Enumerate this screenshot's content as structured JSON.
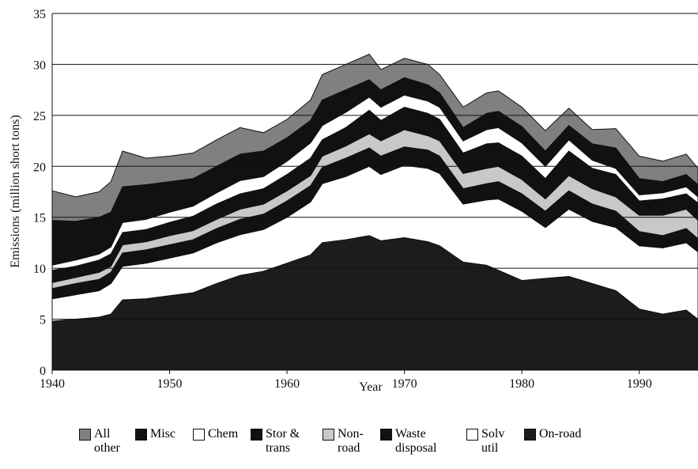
{
  "chart_data": {
    "type": "stacked-area",
    "x_label": "Year",
    "y_label": "Emissions (million short tons)",
    "x": [
      1940,
      1942,
      1944,
      1945,
      1946,
      1948,
      1950,
      1952,
      1954,
      1956,
      1958,
      1960,
      1962,
      1963,
      1965,
      1967,
      1968,
      1970,
      1972,
      1973,
      1975,
      1977,
      1978,
      1980,
      1982,
      1984,
      1986,
      1988,
      1990,
      1992,
      1994,
      1995
    ],
    "xlim": [
      1940,
      1995
    ],
    "xticks": [
      1940,
      1950,
      1960,
      1970,
      1980,
      1990
    ],
    "ylim": [
      0,
      35
    ],
    "yticks": [
      0,
      5,
      10,
      15,
      20,
      25,
      30,
      35
    ],
    "grid": true,
    "series": [
      {
        "name": "All other",
        "color": "#808080",
        "values": [
          2.9,
          2.4,
          2.5,
          3.0,
          3.5,
          2.6,
          2.5,
          2.5,
          2.6,
          2.6,
          1.8,
          1.8,
          2.0,
          2.5,
          2.5,
          2.5,
          2.0,
          1.9,
          2.0,
          1.8,
          2.0,
          2.0,
          2.0,
          1.9,
          2.0,
          1.7,
          1.4,
          1.9,
          2.2,
          2.0,
          2.0,
          1.6
        ]
      },
      {
        "name": "Misc",
        "color": "#111111",
        "values": [
          4.4,
          3.8,
          3.6,
          3.4,
          3.5,
          3.4,
          3.0,
          2.7,
          2.6,
          2.6,
          2.5,
          2.3,
          2.2,
          2.5,
          2.2,
          1.7,
          1.7,
          1.7,
          1.6,
          1.4,
          1.3,
          1.6,
          1.6,
          1.6,
          1.5,
          1.4,
          1.6,
          2.0,
          1.6,
          1.1,
          1.2,
          1.2
        ]
      },
      {
        "name": "Chem",
        "color": "#ffffff",
        "values": [
          0.5,
          0.6,
          0.6,
          0.7,
          1.0,
          1.0,
          1.0,
          1.0,
          1.1,
          1.3,
          1.2,
          1.3,
          1.5,
          1.4,
          1.5,
          1.3,
          1.3,
          1.2,
          1.2,
          1.2,
          1.2,
          1.4,
          1.5,
          1.3,
          1.2,
          1.1,
          0.8,
          0.6,
          0.6,
          0.6,
          0.7,
          0.6
        ]
      },
      {
        "name": "Stor & trans",
        "color": "#111111",
        "values": [
          1.2,
          1.1,
          1.2,
          1.2,
          1.2,
          1.2,
          1.3,
          1.4,
          1.5,
          1.5,
          1.5,
          1.6,
          1.7,
          1.6,
          1.8,
          2.3,
          2.0,
          2.2,
          2.2,
          2.1,
          2.0,
          2.4,
          2.3,
          2.3,
          2.0,
          2.4,
          2.0,
          2.2,
          1.4,
          1.6,
          1.5,
          1.7
        ]
      },
      {
        "name": "Non-road",
        "color": "#c8c8c8",
        "values": [
          0.6,
          0.6,
          0.7,
          0.6,
          0.8,
          0.8,
          0.9,
          0.9,
          0.9,
          1.0,
          1.0,
          1.0,
          1.0,
          1.1,
          1.2,
          1.4,
          1.5,
          1.7,
          1.4,
          1.5,
          1.5,
          1.5,
          1.5,
          1.4,
          1.2,
          1.5,
          1.5,
          1.4,
          1.6,
          2.0,
          1.9,
          1.8
        ]
      },
      {
        "name": "Waste disposal",
        "color": "#111111",
        "values": [
          1.0,
          1.1,
          1.1,
          1.1,
          1.3,
          1.3,
          1.3,
          1.3,
          1.4,
          1.5,
          1.5,
          1.6,
          1.6,
          1.6,
          1.8,
          1.8,
          1.8,
          1.8,
          1.8,
          1.7,
          1.5,
          1.6,
          1.7,
          1.7,
          1.6,
          1.8,
          1.7,
          1.6,
          1.4,
          1.2,
          1.4,
          1.3
        ]
      },
      {
        "name": "Solv util",
        "color": "#ffffff",
        "values": [
          2.2,
          2.4,
          2.6,
          3.0,
          3.3,
          3.5,
          3.7,
          3.9,
          4.0,
          4.0,
          4.1,
          4.5,
          5.2,
          5.8,
          6.2,
          6.8,
          6.5,
          7.1,
          7.2,
          7.1,
          5.7,
          6.4,
          7.0,
          6.8,
          5.0,
          6.6,
          6.1,
          6.2,
          6.2,
          6.5,
          6.6,
          6.6
        ]
      },
      {
        "name": "On-road",
        "color": "#1c1c1c",
        "values": [
          4.8,
          5.0,
          5.2,
          5.5,
          6.9,
          7.0,
          7.3,
          7.6,
          8.5,
          9.3,
          9.7,
          10.5,
          11.3,
          12.5,
          12.8,
          13.2,
          12.7,
          13.0,
          12.6,
          12.2,
          10.6,
          10.3,
          9.8,
          8.8,
          9.0,
          9.2,
          8.5,
          7.8,
          6.0,
          5.5,
          5.9,
          5.0
        ]
      }
    ]
  }
}
